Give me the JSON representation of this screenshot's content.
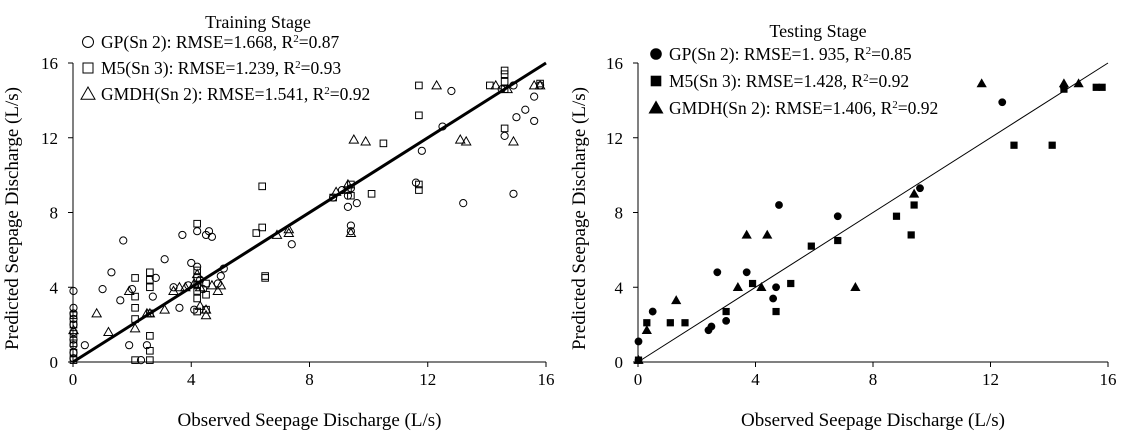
{
  "chart_data": [
    {
      "type": "scatter",
      "title": "Training Stage",
      "xlabel": "Observed Seepage Discharge (L/s)",
      "ylabel": "Predicted Seepage Discharge (L/s)",
      "xlim": [
        0,
        16
      ],
      "ylim": [
        0,
        16
      ],
      "x_ticks": [
        "0",
        "4",
        "8",
        "12",
        "16"
      ],
      "y_ticks": [
        "0",
        "4",
        "8",
        "12",
        "16"
      ],
      "grid": false,
      "legend_position": "top-left",
      "fit_line": {
        "x": [
          0,
          16
        ],
        "y": [
          0,
          16
        ]
      },
      "series": [
        {
          "name": "GP(Sn 2): RMSE=1.668, R",
          "name_tail": "=0.87",
          "marker": "circle-open",
          "points": [
            [
              0,
              3.8
            ],
            [
              0,
              2.9
            ],
            [
              0,
              2.6
            ],
            [
              0,
              2.3
            ],
            [
              0,
              2.0
            ],
            [
              0,
              1.6
            ],
            [
              0,
              1.2
            ],
            [
              0,
              0.9
            ],
            [
              0,
              0.5
            ],
            [
              0,
              0.2
            ],
            [
              0.4,
              0.9
            ],
            [
              1.0,
              3.9
            ],
            [
              1.3,
              4.8
            ],
            [
              1.6,
              3.3
            ],
            [
              1.7,
              6.5
            ],
            [
              1.9,
              0.9
            ],
            [
              2.0,
              3.9
            ],
            [
              2.3,
              0.1
            ],
            [
              2.5,
              0.9
            ],
            [
              2.7,
              3.5
            ],
            [
              2.8,
              4.5
            ],
            [
              3.1,
              5.5
            ],
            [
              3.4,
              4.0
            ],
            [
              3.6,
              2.9
            ],
            [
              3.7,
              6.8
            ],
            [
              3.9,
              4.1
            ],
            [
              4.0,
              5.3
            ],
            [
              4.1,
              2.8
            ],
            [
              4.2,
              5.1
            ],
            [
              4.2,
              7.0
            ],
            [
              4.3,
              4.4
            ],
            [
              4.4,
              3.9
            ],
            [
              4.5,
              6.8
            ],
            [
              4.6,
              7.0
            ],
            [
              4.7,
              6.7
            ],
            [
              4.9,
              4.2
            ],
            [
              5.0,
              4.6
            ],
            [
              5.1,
              5.0
            ],
            [
              7.4,
              6.3
            ],
            [
              8.8,
              8.8
            ],
            [
              9.1,
              9.2
            ],
            [
              9.3,
              8.3
            ],
            [
              9.4,
              9.3
            ],
            [
              9.4,
              7.3
            ],
            [
              9.4,
              7.0
            ],
            [
              9.6,
              8.5
            ],
            [
              9.3,
              8.9
            ],
            [
              11.6,
              9.6
            ],
            [
              11.8,
              11.3
            ],
            [
              12.5,
              12.6
            ],
            [
              12.8,
              14.5
            ],
            [
              13.2,
              8.5
            ],
            [
              14.5,
              14.6
            ],
            [
              14.9,
              9.0
            ],
            [
              15.0,
              13.1
            ],
            [
              15.3,
              13.5
            ],
            [
              15.6,
              12.9
            ],
            [
              15.6,
              14.2
            ],
            [
              15.8,
              14.8
            ],
            [
              14.6,
              12.1
            ],
            [
              14.9,
              14.8
            ]
          ]
        },
        {
          "name": "M5(Sn 3): RMSE=1.239, R",
          "name_tail": "=0.93",
          "marker": "square-open",
          "points": [
            [
              0,
              0.1
            ],
            [
              0,
              0.5
            ],
            [
              0,
              1.0
            ],
            [
              0,
              1.5
            ],
            [
              0,
              2.0
            ],
            [
              0,
              2.5
            ],
            [
              2.1,
              0.1
            ],
            [
              2.1,
              2.3
            ],
            [
              2.1,
              2.9
            ],
            [
              2.1,
              3.5
            ],
            [
              2.1,
              4.5
            ],
            [
              2.6,
              0.1
            ],
            [
              2.6,
              0.6
            ],
            [
              2.6,
              1.4
            ],
            [
              2.6,
              2.6
            ],
            [
              2.6,
              4.0
            ],
            [
              2.6,
              4.4
            ],
            [
              2.6,
              4.8
            ],
            [
              4.2,
              2.7
            ],
            [
              4.2,
              3.4
            ],
            [
              4.2,
              3.8
            ],
            [
              4.2,
              4.1
            ],
            [
              4.2,
              4.5
            ],
            [
              4.2,
              4.9
            ],
            [
              4.2,
              7.4
            ],
            [
              4.5,
              2.8
            ],
            [
              4.5,
              3.6
            ],
            [
              4.5,
              4.2
            ],
            [
              6.2,
              6.9
            ],
            [
              6.4,
              9.4
            ],
            [
              6.4,
              7.2
            ],
            [
              6.5,
              4.6
            ],
            [
              6.5,
              4.5
            ],
            [
              8.8,
              8.8
            ],
            [
              9.3,
              9.2
            ],
            [
              9.4,
              9.5
            ],
            [
              9.4,
              8.9
            ],
            [
              10.1,
              9.0
            ],
            [
              10.5,
              11.7
            ],
            [
              11.7,
              9.5
            ],
            [
              11.7,
              9.2
            ],
            [
              11.7,
              13.2
            ],
            [
              11.7,
              14.8
            ],
            [
              14.1,
              14.8
            ],
            [
              14.6,
              12.5
            ],
            [
              14.6,
              14.6
            ],
            [
              14.6,
              15.0
            ],
            [
              14.6,
              15.4
            ],
            [
              14.6,
              15.6
            ],
            [
              15.8,
              14.9
            ]
          ]
        },
        {
          "name": "GMDH(Sn 2): RMSE=1.541, R",
          "name_tail": "=0.92",
          "marker": "triangle-open",
          "points": [
            [
              0,
              1.7
            ],
            [
              0.8,
              2.6
            ],
            [
              1.2,
              1.6
            ],
            [
              1.9,
              3.8
            ],
            [
              2.1,
              1.8
            ],
            [
              2.5,
              2.6
            ],
            [
              2.6,
              2.6
            ],
            [
              3.1,
              2.8
            ],
            [
              3.4,
              3.8
            ],
            [
              3.6,
              4.0
            ],
            [
              3.8,
              4.0
            ],
            [
              4.1,
              4.2
            ],
            [
              4.2,
              4.7
            ],
            [
              4.3,
              4.0
            ],
            [
              4.3,
              3.0
            ],
            [
              4.5,
              2.5
            ],
            [
              4.5,
              2.8
            ],
            [
              4.7,
              4.1
            ],
            [
              4.9,
              3.8
            ],
            [
              5.0,
              4.1
            ],
            [
              6.9,
              6.8
            ],
            [
              7.3,
              6.9
            ],
            [
              7.3,
              7.1
            ],
            [
              8.9,
              9.1
            ],
            [
              9.3,
              9.5
            ],
            [
              9.4,
              6.9
            ],
            [
              9.5,
              11.9
            ],
            [
              9.9,
              11.8
            ],
            [
              12.3,
              14.8
            ],
            [
              13.1,
              11.9
            ],
            [
              13.3,
              11.8
            ],
            [
              14.3,
              14.8
            ],
            [
              14.7,
              14.6
            ],
            [
              14.9,
              11.8
            ],
            [
              15.6,
              14.8
            ],
            [
              15.8,
              14.8
            ]
          ]
        }
      ]
    },
    {
      "type": "scatter",
      "title": "Testing Stage",
      "xlabel": "Observed Seepage Discharge (L/s)",
      "ylabel": "Predicted Seepage Discharge (L/s)",
      "xlim": [
        0,
        16
      ],
      "ylim": [
        0,
        16
      ],
      "x_ticks": [
        "0",
        "4",
        "8",
        "12",
        "16"
      ],
      "y_ticks": [
        "0",
        "4",
        "8",
        "12",
        "16"
      ],
      "grid": false,
      "legend_position": "top-left",
      "fit_line": {
        "x": [
          0,
          16
        ],
        "y": [
          0,
          16
        ]
      },
      "series": [
        {
          "name": "GP(Sn 2): RMSE=1. 935, R",
          "name_tail": "=0.85",
          "marker": "circle-filled",
          "points": [
            [
              0,
              1.1
            ],
            [
              0,
              0.1
            ],
            [
              0.5,
              2.7
            ],
            [
              2.4,
              1.7
            ],
            [
              2.5,
              1.9
            ],
            [
              2.7,
              4.8
            ],
            [
              3.0,
              2.2
            ],
            [
              3.7,
              4.8
            ],
            [
              4.6,
              3.4
            ],
            [
              4.8,
              8.4
            ],
            [
              4.7,
              4.0
            ],
            [
              6.8,
              7.8
            ],
            [
              9.6,
              9.3
            ],
            [
              12.4,
              13.9
            ],
            [
              14.5,
              14.7
            ]
          ]
        },
        {
          "name": "M5(Sn 3): RMSE=1.428, R",
          "name_tail": "=0.92",
          "marker": "square-filled",
          "points": [
            [
              0,
              0.1
            ],
            [
              0.3,
              2.1
            ],
            [
              1.1,
              2.1
            ],
            [
              1.6,
              2.1
            ],
            [
              3.0,
              2.7
            ],
            [
              3.9,
              4.2
            ],
            [
              4.7,
              2.7
            ],
            [
              5.2,
              4.2
            ],
            [
              5.9,
              6.2
            ],
            [
              6.8,
              6.5
            ],
            [
              8.8,
              7.8
            ],
            [
              9.3,
              6.8
            ],
            [
              9.4,
              8.4
            ],
            [
              12.8,
              11.6
            ],
            [
              14.1,
              11.6
            ],
            [
              14.5,
              14.6
            ],
            [
              15.6,
              14.7
            ],
            [
              15.8,
              14.7
            ]
          ]
        },
        {
          "name": "GMDH(Sn 2): RMSE=1.406, R",
          "name_tail": "=0.92",
          "marker": "triangle-filled",
          "points": [
            [
              0,
              0.1
            ],
            [
              0.3,
              1.7
            ],
            [
              1.3,
              3.3
            ],
            [
              3.4,
              4.0
            ],
            [
              3.7,
              6.8
            ],
            [
              4.2,
              4.0
            ],
            [
              4.4,
              6.8
            ],
            [
              7.4,
              4.0
            ],
            [
              9.4,
              9.0
            ],
            [
              11.7,
              14.9
            ],
            [
              14.5,
              14.9
            ],
            [
              15.0,
              14.9
            ]
          ]
        }
      ]
    }
  ]
}
